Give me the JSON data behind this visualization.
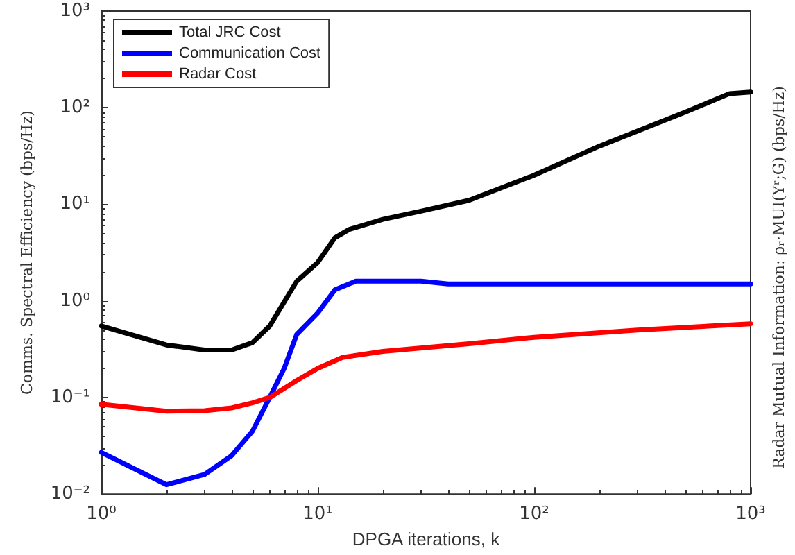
{
  "chart_data": {
    "type": "line",
    "xlabel": "DPGA iterations, k",
    "ylabel": "Comms. Spectral Efficiency (bps/Hz)",
    "y2label": "Radar Mutual Information: ρᵣ·MUI(Yʳ;G) (bps/Hz)",
    "log": "xy",
    "xlim": [
      1,
      1000
    ],
    "ylim": [
      0.01,
      1000
    ],
    "xticks": [
      {
        "value": 1,
        "label": "10⁰"
      },
      {
        "value": 10,
        "label": "10¹"
      },
      {
        "value": 100,
        "label": "10²"
      },
      {
        "value": 1000,
        "label": "10³"
      }
    ],
    "yticks": [
      {
        "value": 0.01,
        "label": "10⁻²"
      },
      {
        "value": 0.1,
        "label": "10⁻¹"
      },
      {
        "value": 1,
        "label": "10⁰"
      },
      {
        "value": 10,
        "label": "10¹"
      },
      {
        "value": 100,
        "label": "10²"
      },
      {
        "value": 1000,
        "label": "10³"
      }
    ],
    "grid": false,
    "legend": "top left",
    "line_style": "solid",
    "marker": "none",
    "series": [
      {
        "name": "Total JRC Cost",
        "color": "#000000",
        "x": [
          1,
          2,
          3,
          4,
          5,
          6,
          8,
          10,
          12,
          14,
          20,
          30,
          50,
          100,
          200,
          500,
          800,
          1000
        ],
        "values": [
          0.55,
          0.35,
          0.31,
          0.31,
          0.37,
          0.55,
          1.6,
          2.5,
          4.5,
          5.5,
          7,
          8.5,
          11,
          20,
          40,
          90,
          140,
          145
        ]
      },
      {
        "name": "Communication Cost",
        "color": "#0000ff",
        "x": [
          1,
          2,
          3,
          4,
          5,
          6,
          7,
          8,
          10,
          12,
          15,
          30,
          40,
          1000
        ],
        "values": [
          0.027,
          0.0125,
          0.016,
          0.025,
          0.045,
          0.1,
          0.2,
          0.45,
          0.75,
          1.3,
          1.6,
          1.6,
          1.5,
          1.5
        ]
      },
      {
        "name": "Radar Cost",
        "color": "#ff0000",
        "x": [
          1,
          2,
          3,
          4,
          5,
          6,
          8,
          10,
          13,
          20,
          50,
          100,
          300,
          1000
        ],
        "values": [
          0.085,
          0.072,
          0.073,
          0.078,
          0.088,
          0.1,
          0.15,
          0.2,
          0.26,
          0.3,
          0.36,
          0.42,
          0.5,
          0.58
        ]
      }
    ]
  }
}
